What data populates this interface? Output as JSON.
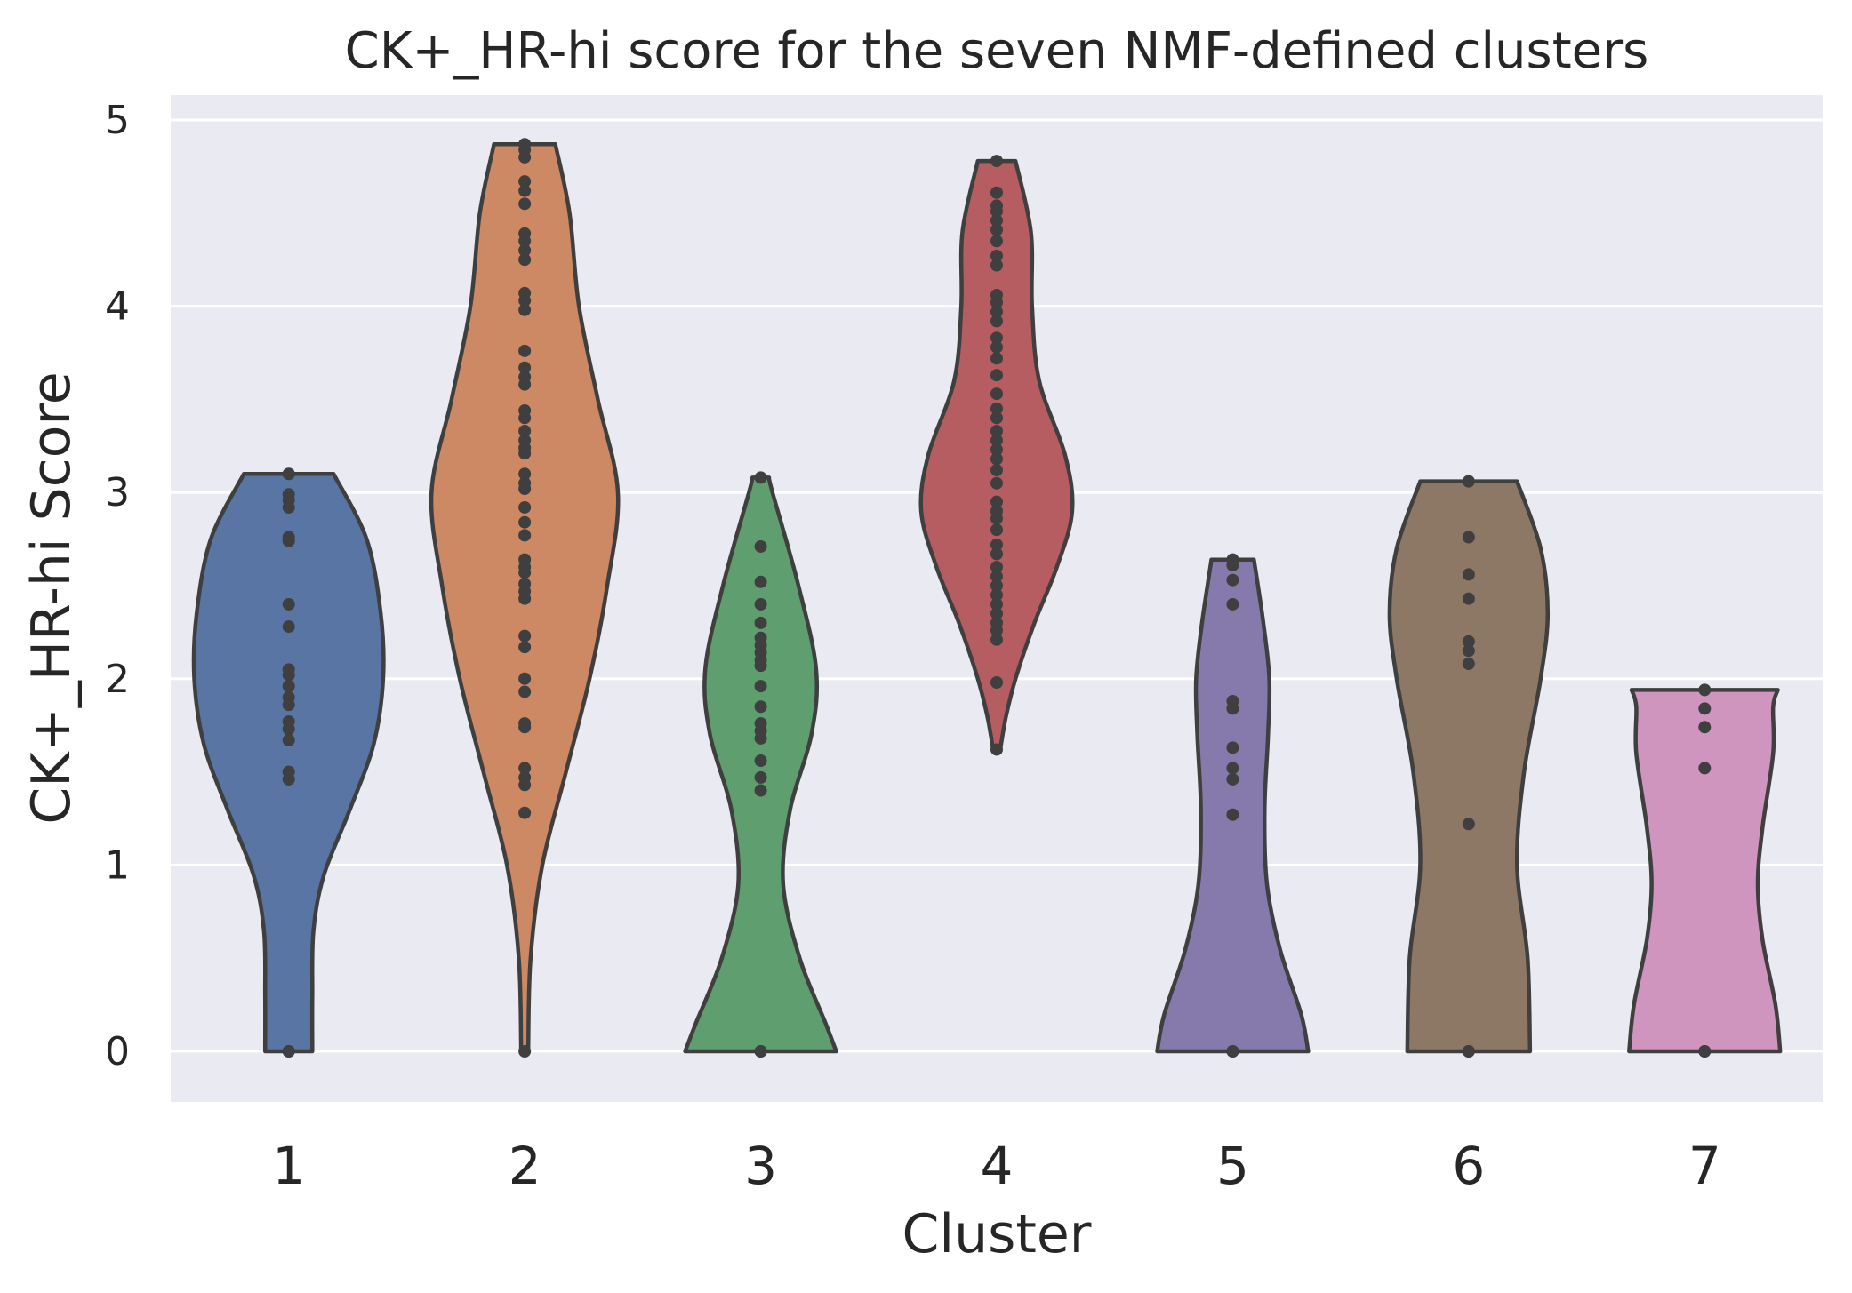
{
  "chart_data": {
    "type": "violin",
    "title": "CK+_HR-hi score for the seven NMF-defined clusters",
    "xlabel": "Cluster",
    "ylabel": "CK+_HR-hi Score",
    "ylim": [
      -0.27,
      5.15
    ],
    "yticks": [
      0,
      1,
      2,
      3,
      4,
      5
    ],
    "grid": true,
    "background": "#eaeaf2",
    "categories": [
      "1",
      "2",
      "3",
      "4",
      "5",
      "6",
      "7"
    ],
    "series": [
      {
        "category": "1",
        "color": "#5875a4",
        "density": [
          [
            0,
            0.2
          ],
          [
            0.3,
            0.2
          ],
          [
            0.65,
            0.21
          ],
          [
            0.95,
            0.3
          ],
          [
            1.3,
            0.52
          ],
          [
            1.65,
            0.72
          ],
          [
            2.0,
            0.8
          ],
          [
            2.35,
            0.78
          ],
          [
            2.75,
            0.66
          ],
          [
            3.1,
            0.38
          ]
        ],
        "points": [
          0,
          0,
          1.46,
          1.5,
          1.67,
          1.73,
          1.77,
          1.86,
          1.9,
          1.96,
          2.02,
          2.05,
          2.28,
          2.4,
          2.74,
          2.76,
          2.92,
          2.96,
          2.99,
          3.1
        ]
      },
      {
        "category": "2",
        "color": "#cc8963",
        "density": [
          [
            0,
            0.03
          ],
          [
            0.5,
            0.05
          ],
          [
            1.0,
            0.15
          ],
          [
            1.5,
            0.35
          ],
          [
            2.0,
            0.55
          ],
          [
            2.5,
            0.7
          ],
          [
            3.0,
            0.79
          ],
          [
            3.5,
            0.62
          ],
          [
            4.0,
            0.46
          ],
          [
            4.5,
            0.38
          ],
          [
            4.87,
            0.26
          ]
        ],
        "points": [
          0,
          1.28,
          1.43,
          1.47,
          1.52,
          1.74,
          1.76,
          1.93,
          2.0,
          2.17,
          2.23,
          2.43,
          2.47,
          2.51,
          2.57,
          2.6,
          2.64,
          2.77,
          2.84,
          2.92,
          3.02,
          3.05,
          3.1,
          3.21,
          3.24,
          3.28,
          3.33,
          3.4,
          3.44,
          3.58,
          3.62,
          3.67,
          3.76,
          3.98,
          4.03,
          4.07,
          4.25,
          4.3,
          4.35,
          4.39,
          4.55,
          4.62,
          4.67,
          4.8,
          4.84,
          4.87
        ]
      },
      {
        "category": "3",
        "color": "#5f9e6e",
        "density": [
          [
            0,
            0.64
          ],
          [
            0.15,
            0.55
          ],
          [
            0.5,
            0.33
          ],
          [
            0.9,
            0.19
          ],
          [
            1.3,
            0.25
          ],
          [
            1.7,
            0.43
          ],
          [
            2.05,
            0.47
          ],
          [
            2.5,
            0.32
          ],
          [
            3.0,
            0.1
          ],
          [
            3.08,
            0.07
          ]
        ],
        "points": [
          0,
          0,
          1.4,
          1.47,
          1.56,
          1.68,
          1.72,
          1.76,
          1.85,
          1.96,
          2.07,
          2.1,
          2.14,
          2.18,
          2.22,
          2.3,
          2.4,
          2.52,
          2.71,
          3.08
        ]
      },
      {
        "category": "4",
        "color": "#b55d60",
        "density": [
          [
            1.62,
            0.03
          ],
          [
            1.8,
            0.08
          ],
          [
            2.0,
            0.16
          ],
          [
            2.3,
            0.32
          ],
          [
            2.6,
            0.51
          ],
          [
            2.9,
            0.64
          ],
          [
            3.2,
            0.58
          ],
          [
            3.6,
            0.36
          ],
          [
            4.0,
            0.3
          ],
          [
            4.4,
            0.29
          ],
          [
            4.78,
            0.16
          ]
        ],
        "points": [
          1.62,
          1.98,
          2.21,
          2.26,
          2.3,
          2.35,
          2.4,
          2.45,
          2.5,
          2.55,
          2.6,
          2.67,
          2.72,
          2.8,
          2.86,
          2.9,
          2.95,
          3.05,
          3.12,
          3.18,
          3.23,
          3.28,
          3.33,
          3.4,
          3.45,
          3.53,
          3.63,
          3.72,
          3.78,
          3.83,
          3.92,
          3.97,
          4.02,
          4.06,
          4.22,
          4.27,
          4.35,
          4.41,
          4.46,
          4.51,
          4.54,
          4.61,
          4.78
        ]
      },
      {
        "category": "5",
        "color": "#857aab",
        "density": [
          [
            0,
            0.64
          ],
          [
            0.2,
            0.58
          ],
          [
            0.55,
            0.4
          ],
          [
            0.9,
            0.29
          ],
          [
            1.3,
            0.27
          ],
          [
            1.7,
            0.3
          ],
          [
            2.0,
            0.31
          ],
          [
            2.3,
            0.26
          ],
          [
            2.64,
            0.18
          ]
        ],
        "points": [
          0,
          0,
          1.27,
          1.46,
          1.52,
          1.63,
          1.84,
          1.88,
          2.4,
          2.53,
          2.61,
          2.64
        ]
      },
      {
        "category": "6",
        "color": "#8d7866",
        "density": [
          [
            0,
            0.52
          ],
          [
            0.5,
            0.5
          ],
          [
            1.0,
            0.41
          ],
          [
            1.5,
            0.47
          ],
          [
            2.0,
            0.61
          ],
          [
            2.35,
            0.67
          ],
          [
            2.7,
            0.61
          ],
          [
            3.06,
            0.41
          ]
        ],
        "points": [
          0,
          0,
          1.22,
          2.08,
          2.15,
          2.2,
          2.43,
          2.56,
          2.76,
          3.06
        ]
      },
      {
        "category": "7",
        "color": "#d095bf",
        "density": [
          [
            0,
            0.64
          ],
          [
            0.25,
            0.6
          ],
          [
            0.6,
            0.49
          ],
          [
            0.9,
            0.45
          ],
          [
            1.2,
            0.49
          ],
          [
            1.6,
            0.58
          ],
          [
            1.85,
            0.58
          ],
          [
            1.94,
            0.62
          ]
        ],
        "points": [
          0,
          0,
          1.52,
          1.74,
          1.84,
          1.94
        ]
      }
    ]
  }
}
